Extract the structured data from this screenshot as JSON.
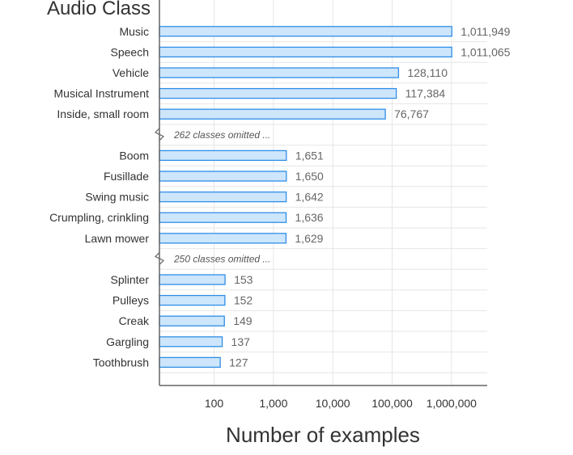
{
  "chart_data": {
    "type": "bar",
    "orientation": "horizontal",
    "title": "Audio Class",
    "xlabel": "Number of examples",
    "x_scale": "log",
    "xlim": [
      12,
      4000000
    ],
    "xticks": [
      100,
      1000,
      10000,
      100000,
      1000000
    ],
    "xtick_labels": [
      "100",
      "1,000",
      "10,000",
      "100,000",
      "1,000,000"
    ],
    "grid": true,
    "bar_color": "#cde6fb",
    "bar_edge_color": "#2f8ee6",
    "rows": [
      {
        "kind": "bar",
        "category": "Music",
        "value": 1011949,
        "label": "1,011,949"
      },
      {
        "kind": "bar",
        "category": "Speech",
        "value": 1011065,
        "label": "1,011,065"
      },
      {
        "kind": "bar",
        "category": "Vehicle",
        "value": 128110,
        "label": "128,110"
      },
      {
        "kind": "bar",
        "category": "Musical Instrument",
        "value": 117384,
        "label": "117,384"
      },
      {
        "kind": "bar",
        "category": "Inside, small room",
        "value": 76767,
        "label": "76,767"
      },
      {
        "kind": "omitted",
        "text": "262 classes omitted ..."
      },
      {
        "kind": "bar",
        "category": "Boom",
        "value": 1651,
        "label": "1,651"
      },
      {
        "kind": "bar",
        "category": "Fusillade",
        "value": 1650,
        "label": "1,650"
      },
      {
        "kind": "bar",
        "category": "Swing music",
        "value": 1642,
        "label": "1,642"
      },
      {
        "kind": "bar",
        "category": "Crumpling, crinkling",
        "value": 1636,
        "label": "1,636"
      },
      {
        "kind": "bar",
        "category": "Lawn mower",
        "value": 1629,
        "label": "1,629"
      },
      {
        "kind": "omitted",
        "text": "250 classes omitted ..."
      },
      {
        "kind": "bar",
        "category": "Splinter",
        "value": 153,
        "label": "153"
      },
      {
        "kind": "bar",
        "category": "Pulleys",
        "value": 152,
        "label": "152"
      },
      {
        "kind": "bar",
        "category": "Creak",
        "value": 149,
        "label": "149"
      },
      {
        "kind": "bar",
        "category": "Gargling",
        "value": 137,
        "label": "137"
      },
      {
        "kind": "bar",
        "category": "Toothbrush",
        "value": 127,
        "label": "127"
      }
    ]
  }
}
